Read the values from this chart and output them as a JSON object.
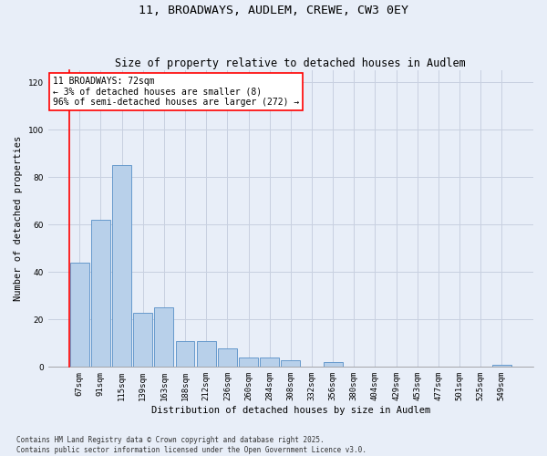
{
  "title": "11, BROADWAYS, AUDLEM, CREWE, CW3 0EY",
  "subtitle": "Size of property relative to detached houses in Audlem",
  "xlabel": "Distribution of detached houses by size in Audlem",
  "ylabel": "Number of detached properties",
  "categories": [
    "67sqm",
    "91sqm",
    "115sqm",
    "139sqm",
    "163sqm",
    "188sqm",
    "212sqm",
    "236sqm",
    "260sqm",
    "284sqm",
    "308sqm",
    "332sqm",
    "356sqm",
    "380sqm",
    "404sqm",
    "429sqm",
    "453sqm",
    "477sqm",
    "501sqm",
    "525sqm",
    "549sqm"
  ],
  "values": [
    44,
    62,
    85,
    23,
    25,
    11,
    11,
    8,
    4,
    4,
    3,
    0,
    2,
    0,
    0,
    0,
    0,
    0,
    0,
    0,
    1
  ],
  "bar_color": "#b8d0ea",
  "bar_edge_color": "#6699cc",
  "annotation_text": "11 BROADWAYS: 72sqm\n← 3% of detached houses are smaller (8)\n96% of semi-detached houses are larger (272) →",
  "annotation_box_color": "white",
  "annotation_box_edge_color": "red",
  "vertical_line_color": "red",
  "ylim": [
    0,
    125
  ],
  "yticks": [
    0,
    20,
    40,
    60,
    80,
    100,
    120
  ],
  "grid_color": "#c8d0e0",
  "background_color": "#e8eef8",
  "footer_line1": "Contains HM Land Registry data © Crown copyright and database right 2025.",
  "footer_line2": "Contains public sector information licensed under the Open Government Licence v3.0.",
  "title_fontsize": 9.5,
  "subtitle_fontsize": 8.5,
  "axis_label_fontsize": 7.5,
  "tick_fontsize": 6.5,
  "annotation_fontsize": 7,
  "footer_fontsize": 5.5
}
